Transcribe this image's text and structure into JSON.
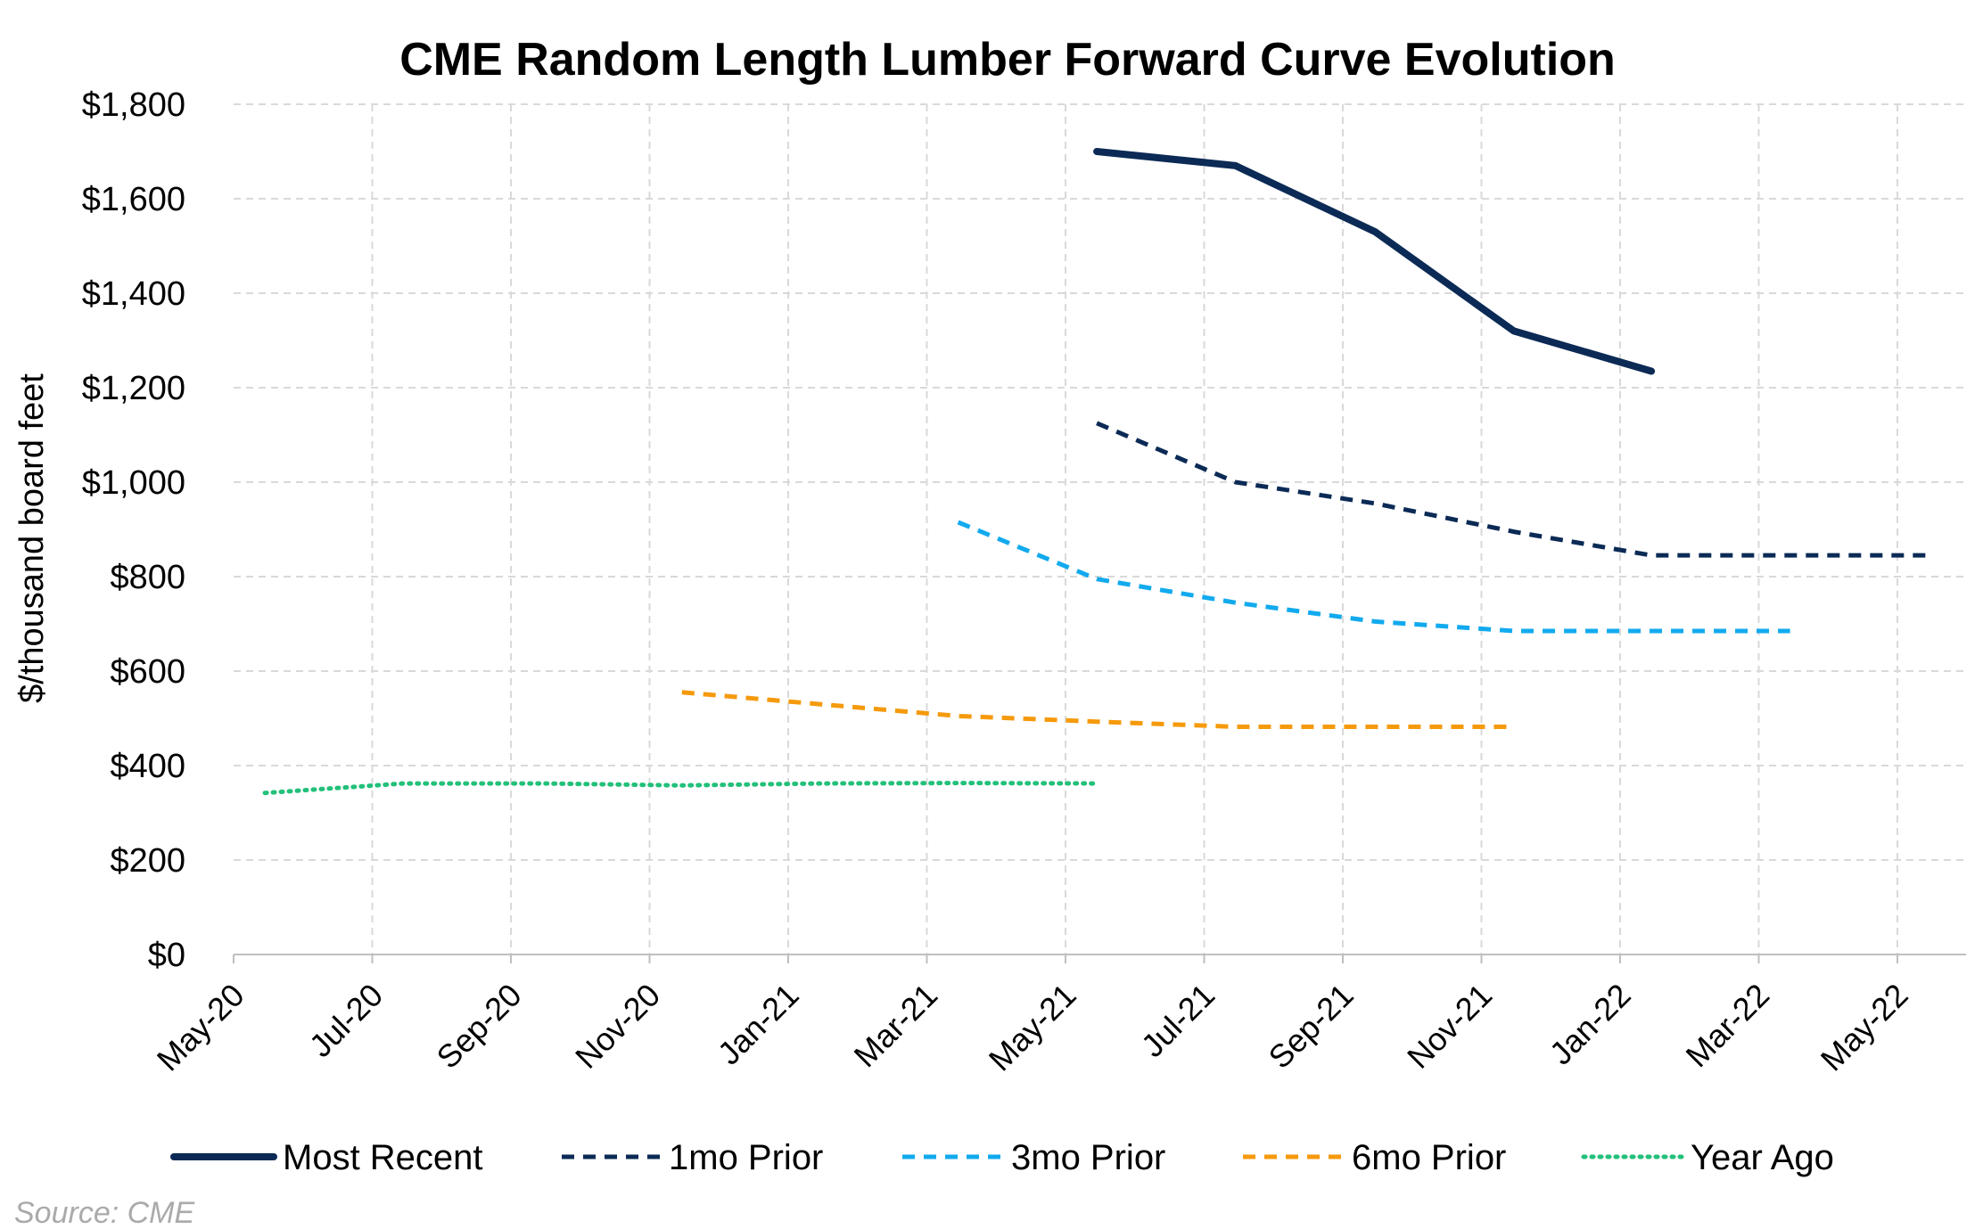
{
  "chart_data": {
    "type": "line",
    "title": "CME Random Length Lumber Forward Curve Evolution",
    "ylabel": "$/thousand board feet",
    "xlabel": "",
    "ylim": [
      0,
      1800
    ],
    "y_ticks": [
      "$0",
      "$200",
      "$400",
      "$600",
      "$800",
      "$1,000",
      "$1,200",
      "$1,400",
      "$1,600",
      "$1,800"
    ],
    "y_tick_values": [
      0,
      200,
      400,
      600,
      800,
      1000,
      1200,
      1400,
      1600,
      1800
    ],
    "x_ticks": [
      "May-20",
      "Jul-20",
      "Sep-20",
      "Nov-20",
      "Jan-21",
      "Mar-21",
      "May-21",
      "Jul-21",
      "Sep-21",
      "Nov-21",
      "Jan-22",
      "Mar-22",
      "May-22"
    ],
    "xlim": [
      "2020-05-01",
      "2022-06-01"
    ],
    "grid": true,
    "legend_position": "bottom",
    "series": [
      {
        "name": "Most Recent",
        "color": "#0b2a55",
        "style": "solid",
        "points": [
          {
            "x": "2021-05-15",
            "y": 1700
          },
          {
            "x": "2021-07-15",
            "y": 1670
          },
          {
            "x": "2021-09-15",
            "y": 1530
          },
          {
            "x": "2021-11-15",
            "y": 1320
          },
          {
            "x": "2022-01-15",
            "y": 1235
          }
        ]
      },
      {
        "name": "1mo Prior",
        "color": "#0b2a55",
        "style": "dashed",
        "points": [
          {
            "x": "2021-05-15",
            "y": 1125
          },
          {
            "x": "2021-07-15",
            "y": 1000
          },
          {
            "x": "2021-09-15",
            "y": 955
          },
          {
            "x": "2021-11-15",
            "y": 895
          },
          {
            "x": "2022-01-15",
            "y": 845
          },
          {
            "x": "2022-03-15",
            "y": 845
          },
          {
            "x": "2022-05-15",
            "y": 845
          }
        ]
      },
      {
        "name": "3mo Prior",
        "color": "#12aaee",
        "style": "dashed",
        "points": [
          {
            "x": "2021-03-15",
            "y": 915
          },
          {
            "x": "2021-05-15",
            "y": 795
          },
          {
            "x": "2021-07-15",
            "y": 745
          },
          {
            "x": "2021-09-15",
            "y": 705
          },
          {
            "x": "2021-11-15",
            "y": 685
          },
          {
            "x": "2022-01-15",
            "y": 685
          },
          {
            "x": "2022-03-15",
            "y": 685
          }
        ]
      },
      {
        "name": "6mo Prior",
        "color": "#f59a0c",
        "style": "dashed",
        "points": [
          {
            "x": "2020-11-15",
            "y": 555
          },
          {
            "x": "2021-01-15",
            "y": 530
          },
          {
            "x": "2021-03-15",
            "y": 505
          },
          {
            "x": "2021-05-15",
            "y": 493
          },
          {
            "x": "2021-07-15",
            "y": 482
          },
          {
            "x": "2021-09-15",
            "y": 482
          },
          {
            "x": "2021-11-15",
            "y": 482
          }
        ]
      },
      {
        "name": "Year Ago",
        "color": "#22c07a",
        "style": "dotted",
        "points": [
          {
            "x": "2020-05-15",
            "y": 342
          },
          {
            "x": "2020-07-15",
            "y": 362
          },
          {
            "x": "2020-09-15",
            "y": 362
          },
          {
            "x": "2020-11-15",
            "y": 358
          },
          {
            "x": "2021-01-15",
            "y": 362
          },
          {
            "x": "2021-03-15",
            "y": 363
          },
          {
            "x": "2021-05-15",
            "y": 362
          }
        ]
      }
    ]
  },
  "source": "Source: CME"
}
